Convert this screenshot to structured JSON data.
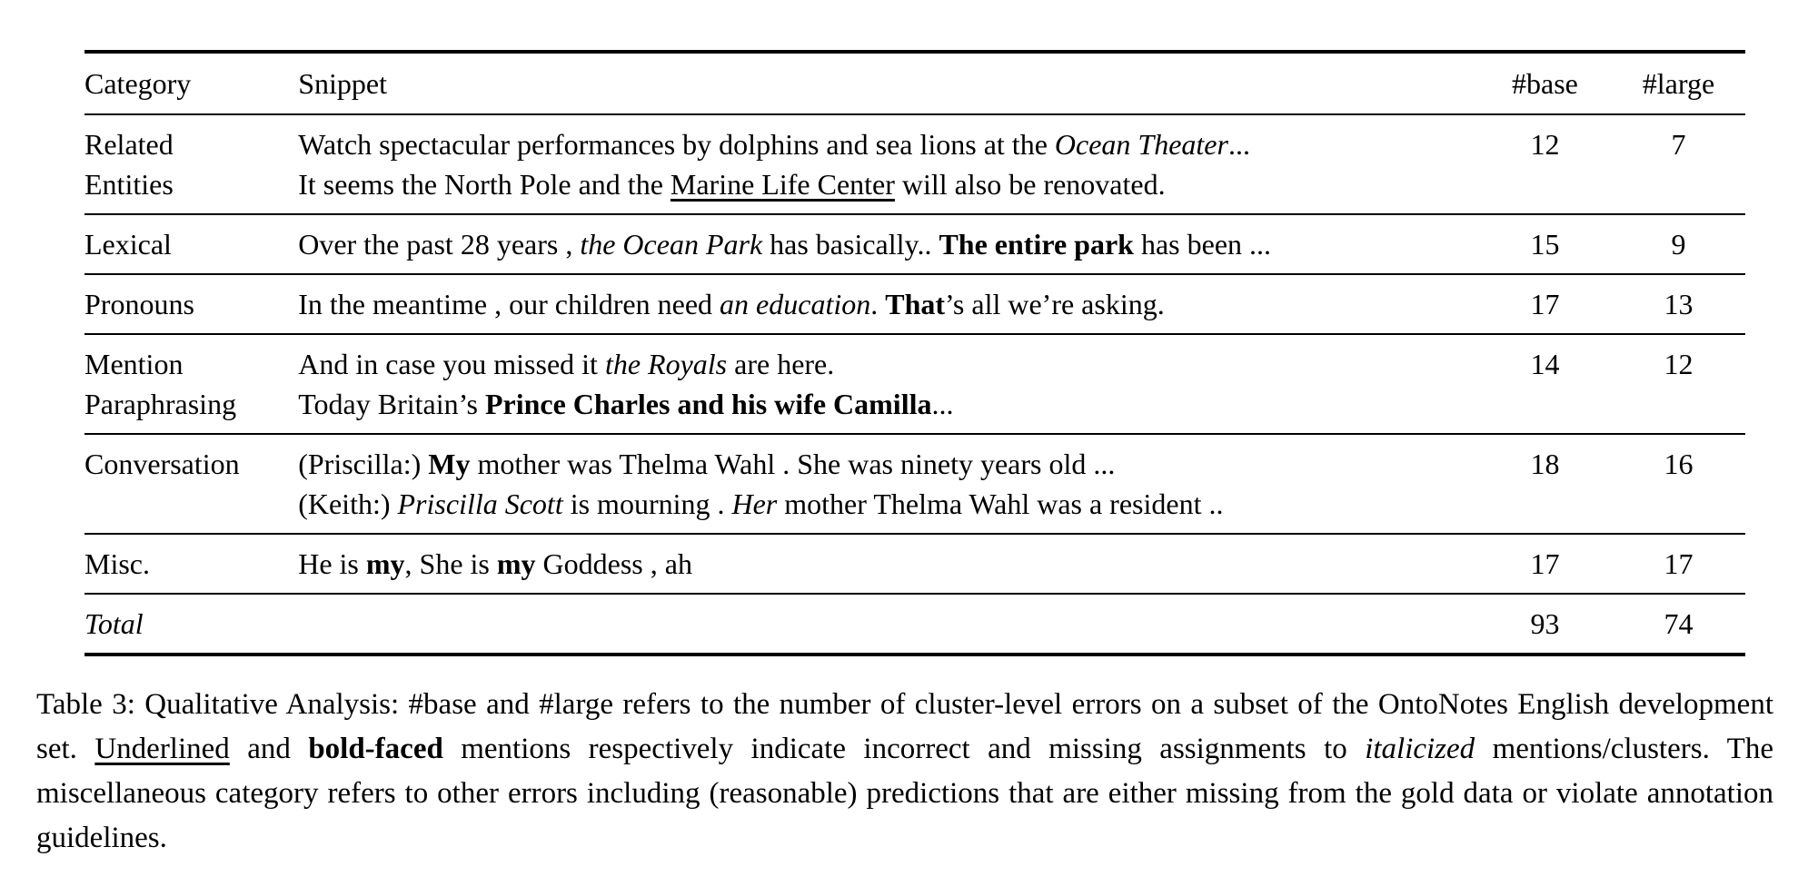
{
  "colors": {
    "text": "#000000",
    "background": "#ffffff"
  },
  "table": {
    "columns": [
      "Category",
      "Snippet",
      "#base",
      "#large"
    ],
    "rows": [
      {
        "category": [
          "Related",
          "Entities"
        ],
        "snippet": [
          [
            {
              "text": "Watch spectacular performances by dolphins and sea lions at the "
            },
            {
              "text": "Ocean Theater",
              "style": "italic"
            },
            {
              "text": "..."
            }
          ],
          [
            {
              "text": "It seems the North Pole and the "
            },
            {
              "text": "Marine Life Center",
              "style": "underline"
            },
            {
              "text": " will also be renovated."
            }
          ]
        ],
        "base": "12",
        "large": "7"
      },
      {
        "category": [
          "Lexical"
        ],
        "snippet": [
          [
            {
              "text": "Over the past 28 years , "
            },
            {
              "text": "the Ocean Park",
              "style": "italic"
            },
            {
              "text": " has basically.. "
            },
            {
              "text": "The entire park",
              "style": "bold"
            },
            {
              "text": " has been ..."
            }
          ]
        ],
        "base": "15",
        "large": "9"
      },
      {
        "category": [
          "Pronouns"
        ],
        "snippet": [
          [
            {
              "text": "In the meantime , our children need "
            },
            {
              "text": "an education",
              "style": "italic"
            },
            {
              "text": ". "
            },
            {
              "text": "That",
              "style": "bold"
            },
            {
              "text": "’s all we’re asking."
            }
          ]
        ],
        "base": "17",
        "large": "13"
      },
      {
        "category": [
          "Mention",
          "Paraphrasing"
        ],
        "snippet": [
          [
            {
              "text": "And in case you missed it "
            },
            {
              "text": "the Royals",
              "style": "italic"
            },
            {
              "text": " are here."
            }
          ],
          [
            {
              "text": "Today Britain’s "
            },
            {
              "text": "Prince Charles and his wife Camilla",
              "style": "bold"
            },
            {
              "text": "..."
            }
          ]
        ],
        "base": "14",
        "large": "12"
      },
      {
        "category": [
          "Conversation"
        ],
        "snippet": [
          [
            {
              "text": "(Priscilla:) "
            },
            {
              "text": "My",
              "style": "bold"
            },
            {
              "text": " mother was Thelma Wahl . She was ninety years old ..."
            }
          ],
          [
            {
              "text": "(Keith:) "
            },
            {
              "text": "Priscilla Scott",
              "style": "italic"
            },
            {
              "text": " is mourning . "
            },
            {
              "text": "Her",
              "style": "italic"
            },
            {
              "text": " mother Thelma Wahl was a resident .."
            }
          ]
        ],
        "base": "18",
        "large": "16"
      },
      {
        "category": [
          "Misc."
        ],
        "snippet": [
          [
            {
              "text": "He is "
            },
            {
              "text": "my",
              "style": "bold"
            },
            {
              "text": ", She is "
            },
            {
              "text": "my",
              "style": "bold"
            },
            {
              "text": " Goddess , ah"
            }
          ]
        ],
        "base": "17",
        "large": "17"
      }
    ],
    "total": {
      "label": "Total",
      "base": "93",
      "large": "74"
    }
  },
  "caption": {
    "segments": [
      [
        {
          "text": "Table 3: Qualitative Analysis: #base and #large refers to the number of cluster-level errors on a subset of the OntoNotes English development set. "
        },
        {
          "text": "Underlined",
          "style": "underline"
        },
        {
          "text": " and "
        },
        {
          "text": "bold-faced",
          "style": "bold"
        },
        {
          "text": " mentions respectively indicate incorrect and missing assignments to "
        },
        {
          "text": "italicized",
          "style": "italic"
        },
        {
          "text": " mentions/clusters. The miscellaneous category refers to other errors including (reasonable) predictions that are either missing from the gold data or violate annotation guidelines."
        }
      ]
    ]
  }
}
